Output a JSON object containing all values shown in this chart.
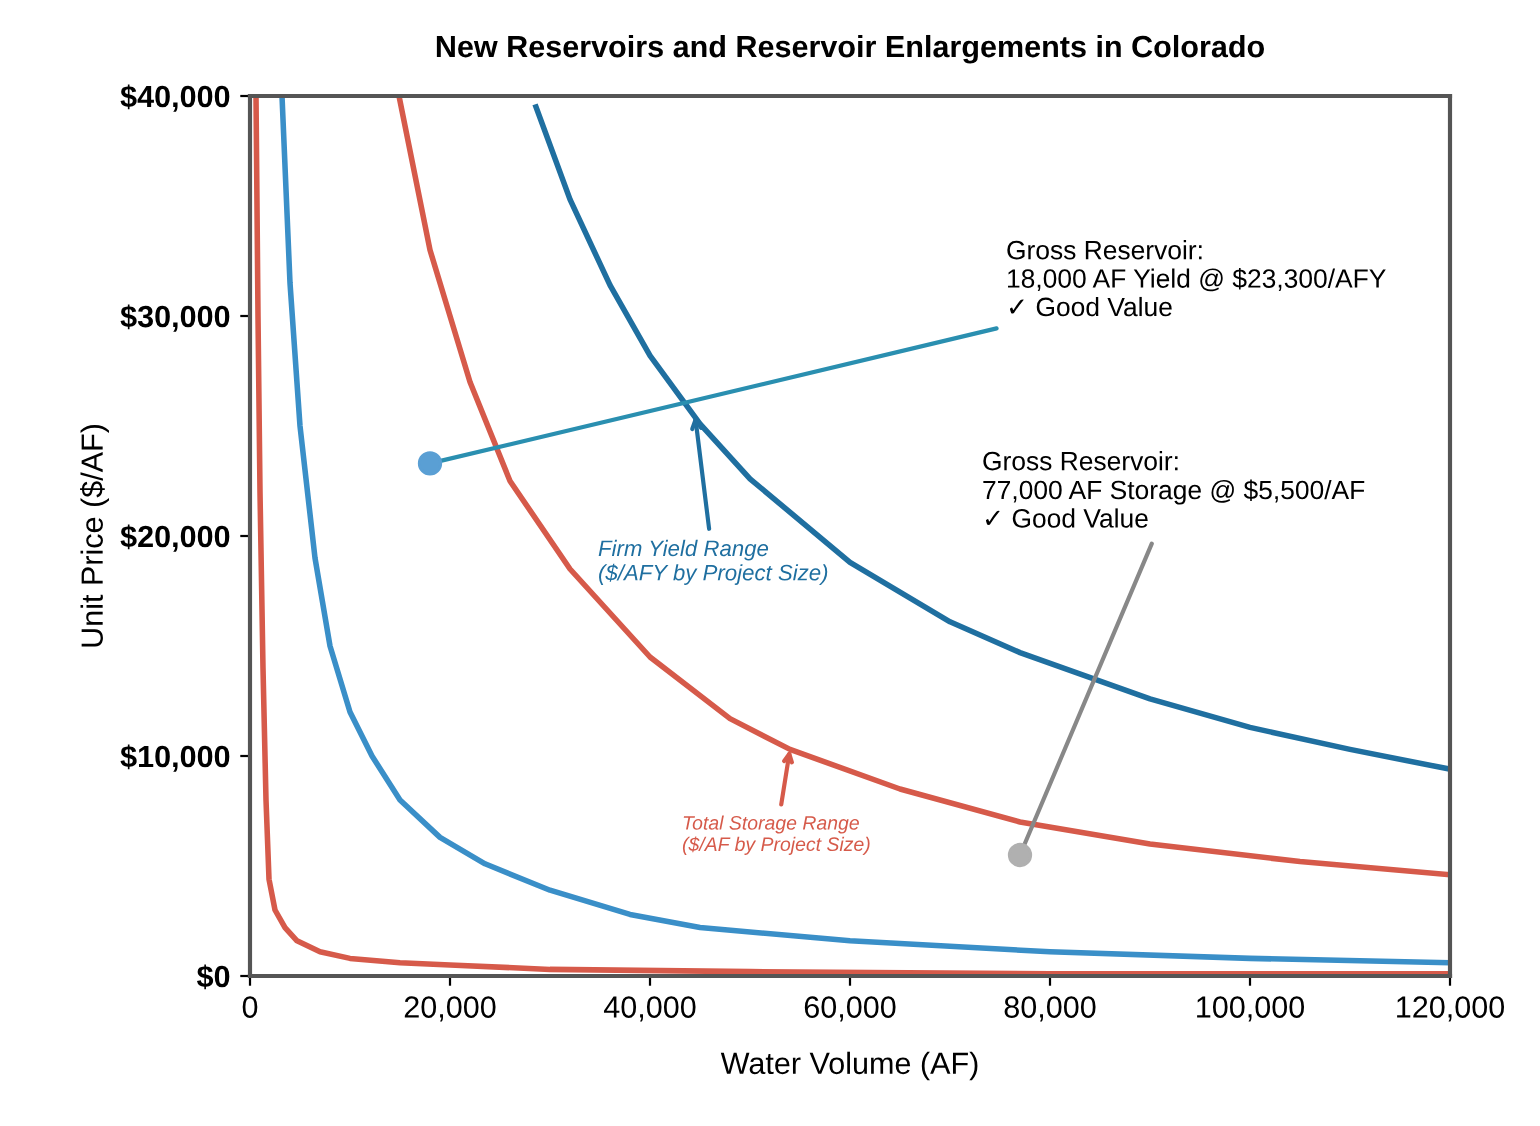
{
  "chart_data": {
    "type": "line",
    "title": "New Reservoirs and Reservoir Enlargements in Colorado",
    "xlabel": "Water Volume (AF)",
    "ylabel": "Unit Price ($/AF)",
    "series": [
      {
        "color": "#1f6fa0",
        "x": [
          28600,
          32000,
          36000,
          40000,
          45000,
          50000,
          60000,
          70000,
          77000,
          90000,
          100000,
          110000,
          120000
        ],
        "values": [
          39500,
          35300,
          31400,
          28200,
          25100,
          22600,
          18800,
          16100,
          14700,
          12600,
          11300,
          10300,
          9400
        ]
      },
      {
        "color": "#d65a4a",
        "x": [
          14900,
          18000,
          22000,
          26000,
          32000,
          40000,
          48000,
          54000,
          65000,
          77000,
          90000,
          105000,
          120000
        ],
        "values": [
          40000,
          33000,
          27000,
          22500,
          18500,
          14500,
          11700,
          10300,
          8500,
          7000,
          6000,
          5200,
          4600
        ]
      },
      {
        "color": "#3a8fc8",
        "x": [
          3200,
          4000,
          5000,
          6500,
          8000,
          10000,
          12200,
          15000,
          19000,
          23500,
          30000,
          38000,
          45000,
          60000,
          80000,
          100000,
          120000
        ],
        "values": [
          40000,
          31500,
          25000,
          19000,
          15000,
          12000,
          10000,
          8000,
          6300,
          5100,
          3900,
          2800,
          2200,
          1600,
          1100,
          800,
          600
        ]
      },
      {
        "color": "#d65a4a",
        "x": [
          600,
          800,
          1000,
          1300,
          1600,
          1900,
          2500,
          3500,
          4700,
          7000,
          10000,
          15000,
          20000,
          30000,
          50000,
          80000,
          120000
        ],
        "values": [
          40000,
          30000,
          22000,
          14000,
          8000,
          4400,
          3000,
          2200,
          1600,
          1100,
          800,
          600,
          500,
          300,
          200,
          100,
          100
        ]
      },
      {
        "type": "scatter",
        "marker": "circle",
        "color": "#5a9fd4",
        "x": [
          18000
        ],
        "values": [
          23300
        ]
      },
      {
        "type": "scatter",
        "marker": "circle",
        "color": "#b0b0b0",
        "x": [
          77000
        ],
        "values": [
          5500
        ]
      }
    ],
    "annotations": [
      {
        "text": "Gross Reservoir:\n18,000 AF Yield @ $23,300/AFY\n✓ Good Value",
        "x": 18000,
        "y": 23300
      },
      {
        "text": "Gross Reservoir:\n77,000 AF Storage @ $5,500/AF\n✓ Good Value",
        "x": 77000,
        "y": 5500
      },
      {
        "text": "Firm Yield Range\n($/AFY by Project Size)",
        "x": 44500,
        "y": 25500
      },
      {
        "text": "Total Storage Range\n($/AF by Project Size)",
        "x": 54000,
        "y": 10300
      }
    ],
    "xlim": [
      0,
      120000
    ],
    "ylim": [
      0,
      40000
    ],
    "xticks": [
      0,
      {
        "value": 20000,
        "label": "20,000"
      },
      {
        "value": 40000,
        "label": "40,000"
      },
      {
        "value": 60000,
        "label": "60,000"
      },
      {
        "value": 80000,
        "label": "80,000"
      },
      {
        "value": 100000,
        "label": "100,000"
      },
      {
        "value": 120000,
        "label": "120,000"
      }
    ],
    "yticks": [
      {
        "value": 0,
        "label": "$0"
      },
      {
        "value": 10000,
        "label": "$10,000"
      },
      {
        "value": 20000,
        "label": "$20,000"
      },
      {
        "value": 30000,
        "label": "$30,000"
      },
      {
        "value": 40000,
        "label": "$40,000"
      }
    ],
    "grid": false,
    "marker": "none",
    "line_style": "solid"
  }
}
